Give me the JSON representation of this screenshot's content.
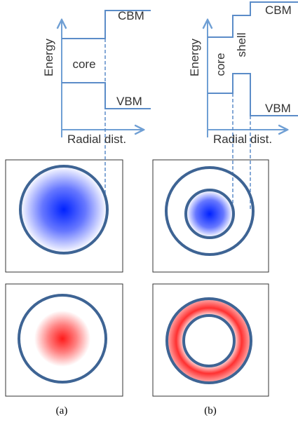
{
  "panel_a": {
    "energy_label": "Energy",
    "region_label": "core",
    "cbm_label": "CBM",
    "vbm_label": "VBM",
    "axis_label": "Radial dist."
  },
  "panel_b": {
    "energy_label": "Energy",
    "core_label": "core",
    "shell_label": "shell",
    "cbm_label": "CBM",
    "vbm_label": "VBM",
    "axis_label": "Radial dist."
  },
  "captions": [
    "(a)",
    "(b)"
  ]
}
